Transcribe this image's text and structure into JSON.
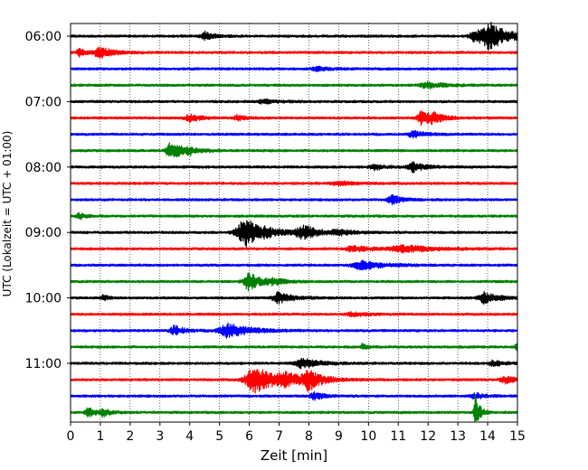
{
  "chart_data": {
    "type": "line",
    "title": "",
    "xlabel": "Zeit  [min]",
    "ylabel": "UTC (Lokalzeit = UTC + 01:00)",
    "xlim": [
      0,
      15
    ],
    "x_ticks": [
      0,
      1,
      2,
      3,
      4,
      5,
      6,
      7,
      8,
      9,
      10,
      11,
      12,
      13,
      14,
      15
    ],
    "x_tick_labels": [
      "0",
      "1",
      "2",
      "3",
      "4",
      "5",
      "6",
      "7",
      "8",
      "9",
      "10",
      "11",
      "12",
      "13",
      "14",
      "15"
    ],
    "y_tick_labels": [
      "06:00",
      "07:00",
      "08:00",
      "09:00",
      "10:00",
      "11:00"
    ],
    "grid": "vertical dotted",
    "trace_colors": [
      "#000000",
      "#ff0000",
      "#0000ff",
      "#008000"
    ],
    "traces": [
      {
        "start": "06:00",
        "events": [
          {
            "t": 4.5,
            "amp": 5,
            "w": 0.25
          },
          {
            "t": 14.1,
            "amp": 13,
            "w": 0.55
          },
          {
            "t": 13.6,
            "amp": 6,
            "w": 0.4
          }
        ]
      },
      {
        "start": "06:15",
        "events": [
          {
            "t": 1.0,
            "amp": 6,
            "w": 0.4
          },
          {
            "t": 0.3,
            "amp": 4,
            "w": 0.2
          }
        ]
      },
      {
        "start": "06:30",
        "events": [
          {
            "t": 8.3,
            "amp": 2,
            "w": 0.4
          }
        ]
      },
      {
        "start": "06:45",
        "events": [
          {
            "t": 12.0,
            "amp": 3,
            "w": 0.5
          }
        ]
      },
      {
        "start": "07:00",
        "events": [
          {
            "t": 6.5,
            "amp": 2,
            "w": 0.4
          }
        ]
      },
      {
        "start": "07:15",
        "events": [
          {
            "t": 4.0,
            "amp": 4,
            "w": 0.3
          },
          {
            "t": 5.6,
            "amp": 3,
            "w": 0.2
          },
          {
            "t": 11.8,
            "amp": 8,
            "w": 0.3
          },
          {
            "t": 12.2,
            "amp": 4,
            "w": 0.3
          }
        ]
      },
      {
        "start": "07:30",
        "events": [
          {
            "t": 11.5,
            "amp": 4,
            "w": 0.3
          }
        ]
      },
      {
        "start": "07:45",
        "events": [
          {
            "t": 3.4,
            "amp": 10,
            "w": 0.35
          },
          {
            "t": 4.0,
            "amp": 3,
            "w": 0.3
          }
        ]
      },
      {
        "start": "08:00",
        "events": [
          {
            "t": 10.2,
            "amp": 3,
            "w": 0.3
          },
          {
            "t": 11.5,
            "amp": 5,
            "w": 0.35
          }
        ]
      },
      {
        "start": "08:15",
        "events": [
          {
            "t": 9.0,
            "amp": 2,
            "w": 0.5
          }
        ]
      },
      {
        "start": "08:30",
        "events": [
          {
            "t": 10.8,
            "amp": 5,
            "w": 0.3
          }
        ]
      },
      {
        "start": "08:45",
        "events": [
          {
            "t": 0.3,
            "amp": 3,
            "w": 0.2
          }
        ]
      },
      {
        "start": "09:00",
        "events": [
          {
            "t": 5.9,
            "amp": 16,
            "w": 0.6
          },
          {
            "t": 7.8,
            "amp": 8,
            "w": 0.4
          },
          {
            "t": 9.0,
            "amp": 3,
            "w": 0.4
          }
        ]
      },
      {
        "start": "09:15",
        "events": [
          {
            "t": 9.5,
            "amp": 3,
            "w": 0.5
          },
          {
            "t": 11.2,
            "amp": 4,
            "w": 0.8
          }
        ]
      },
      {
        "start": "09:30",
        "events": [
          {
            "t": 9.8,
            "amp": 5,
            "w": 0.6
          }
        ]
      },
      {
        "start": "09:45",
        "events": [
          {
            "t": 6.0,
            "amp": 10,
            "w": 0.35
          },
          {
            "t": 6.8,
            "amp": 3,
            "w": 0.3
          }
        ]
      },
      {
        "start": "10:00",
        "events": [
          {
            "t": 7.0,
            "amp": 6,
            "w": 0.4
          },
          {
            "t": 1.1,
            "amp": 3,
            "w": 0.15
          },
          {
            "t": 13.9,
            "amp": 6,
            "w": 0.4
          }
        ]
      },
      {
        "start": "10:15",
        "events": [
          {
            "t": 9.5,
            "amp": 2,
            "w": 0.4
          }
        ]
      },
      {
        "start": "10:30",
        "events": [
          {
            "t": 3.5,
            "amp": 5,
            "w": 0.3
          },
          {
            "t": 5.3,
            "amp": 8,
            "w": 0.6
          }
        ]
      },
      {
        "start": "10:45",
        "events": [
          {
            "t": 9.8,
            "amp": 4,
            "w": 0.1
          },
          {
            "t": 15.0,
            "amp": 4,
            "w": 0.15
          }
        ]
      },
      {
        "start": "11:00",
        "events": [
          {
            "t": 7.8,
            "amp": 5,
            "w": 0.5
          },
          {
            "t": 14.2,
            "amp": 3,
            "w": 0.3
          }
        ]
      },
      {
        "start": "11:15",
        "events": [
          {
            "t": 6.2,
            "amp": 14,
            "w": 0.65
          },
          {
            "t": 8.0,
            "amp": 10,
            "w": 0.35
          },
          {
            "t": 7.2,
            "amp": 5,
            "w": 0.6
          },
          {
            "t": 14.6,
            "amp": 4,
            "w": 0.3
          }
        ]
      },
      {
        "start": "11:30",
        "events": [
          {
            "t": 8.2,
            "amp": 4,
            "w": 0.3
          },
          {
            "t": 13.6,
            "amp": 3,
            "w": 0.3
          }
        ]
      },
      {
        "start": "11:45",
        "events": [
          {
            "t": 13.6,
            "amp": 20,
            "w": 0.12
          },
          {
            "t": 0.6,
            "amp": 5,
            "w": 0.2
          },
          {
            "t": 1.1,
            "amp": 4,
            "w": 0.2
          }
        ]
      }
    ]
  }
}
